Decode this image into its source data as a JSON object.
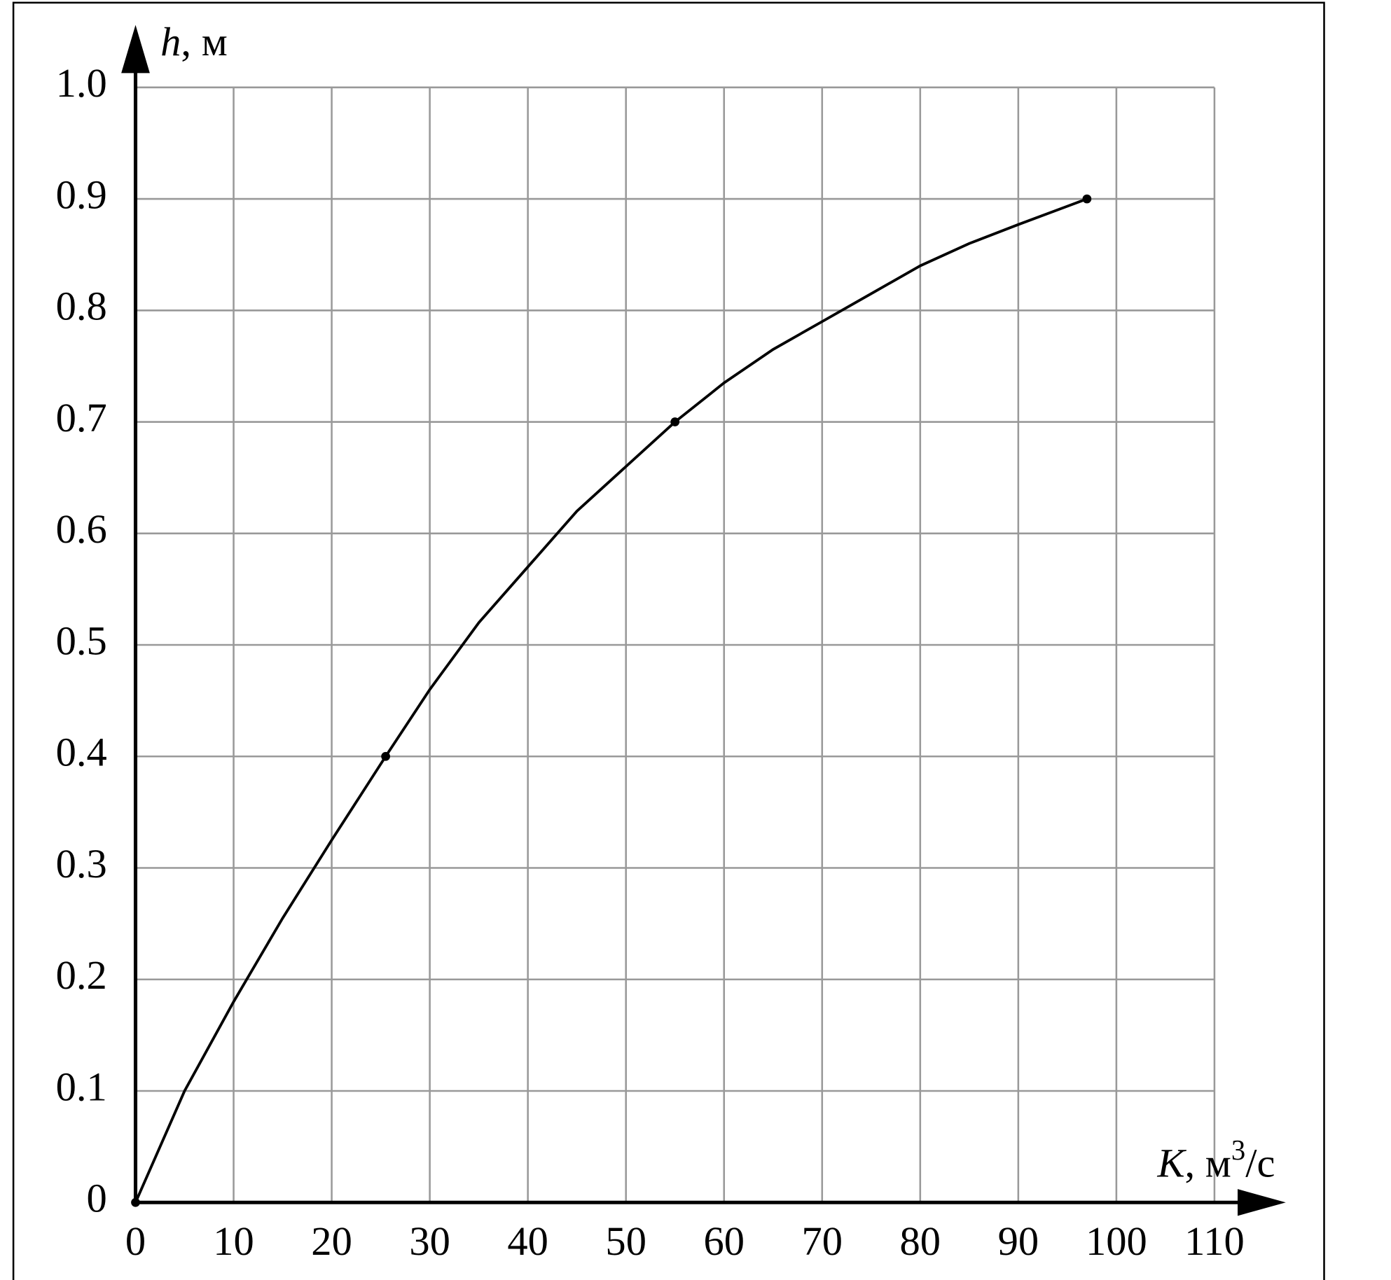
{
  "chart_data": {
    "type": "line",
    "x_label": {
      "var": "K",
      "unit": ", м",
      "sup": "3",
      "tail": "/с"
    },
    "y_label": {
      "var": "h",
      "unit": ", м"
    },
    "series": [
      {
        "color": "#000000",
        "x": [
          0,
          5,
          10,
          15,
          20,
          25.5,
          30,
          35,
          40,
          45,
          50,
          55,
          60,
          65,
          70,
          75,
          80,
          85,
          90,
          97
        ],
        "values": [
          0,
          0.1,
          0.18,
          0.255,
          0.325,
          0.4,
          0.46,
          0.52,
          0.57,
          0.62,
          0.66,
          0.7,
          0.735,
          0.765,
          0.79,
          0.815,
          0.84,
          0.86,
          0.877,
          0.9
        ]
      }
    ],
    "markers": {
      "color": "#000000",
      "x": [
        0,
        25.5,
        55,
        97
      ],
      "values": [
        0,
        0.4,
        0.7,
        0.9
      ]
    },
    "xlim": [
      0,
      117
    ],
    "ylim": [
      0,
      1.056
    ],
    "xticks": [
      0,
      10,
      20,
      30,
      40,
      50,
      60,
      70,
      80,
      90,
      100,
      110
    ],
    "yticks": [
      0,
      0.1,
      0.2,
      0.3,
      0.4,
      0.5,
      0.6,
      0.7,
      0.8,
      0.9,
      {
        "value": 1,
        "label": "1.0"
      }
    ],
    "grid": true
  }
}
